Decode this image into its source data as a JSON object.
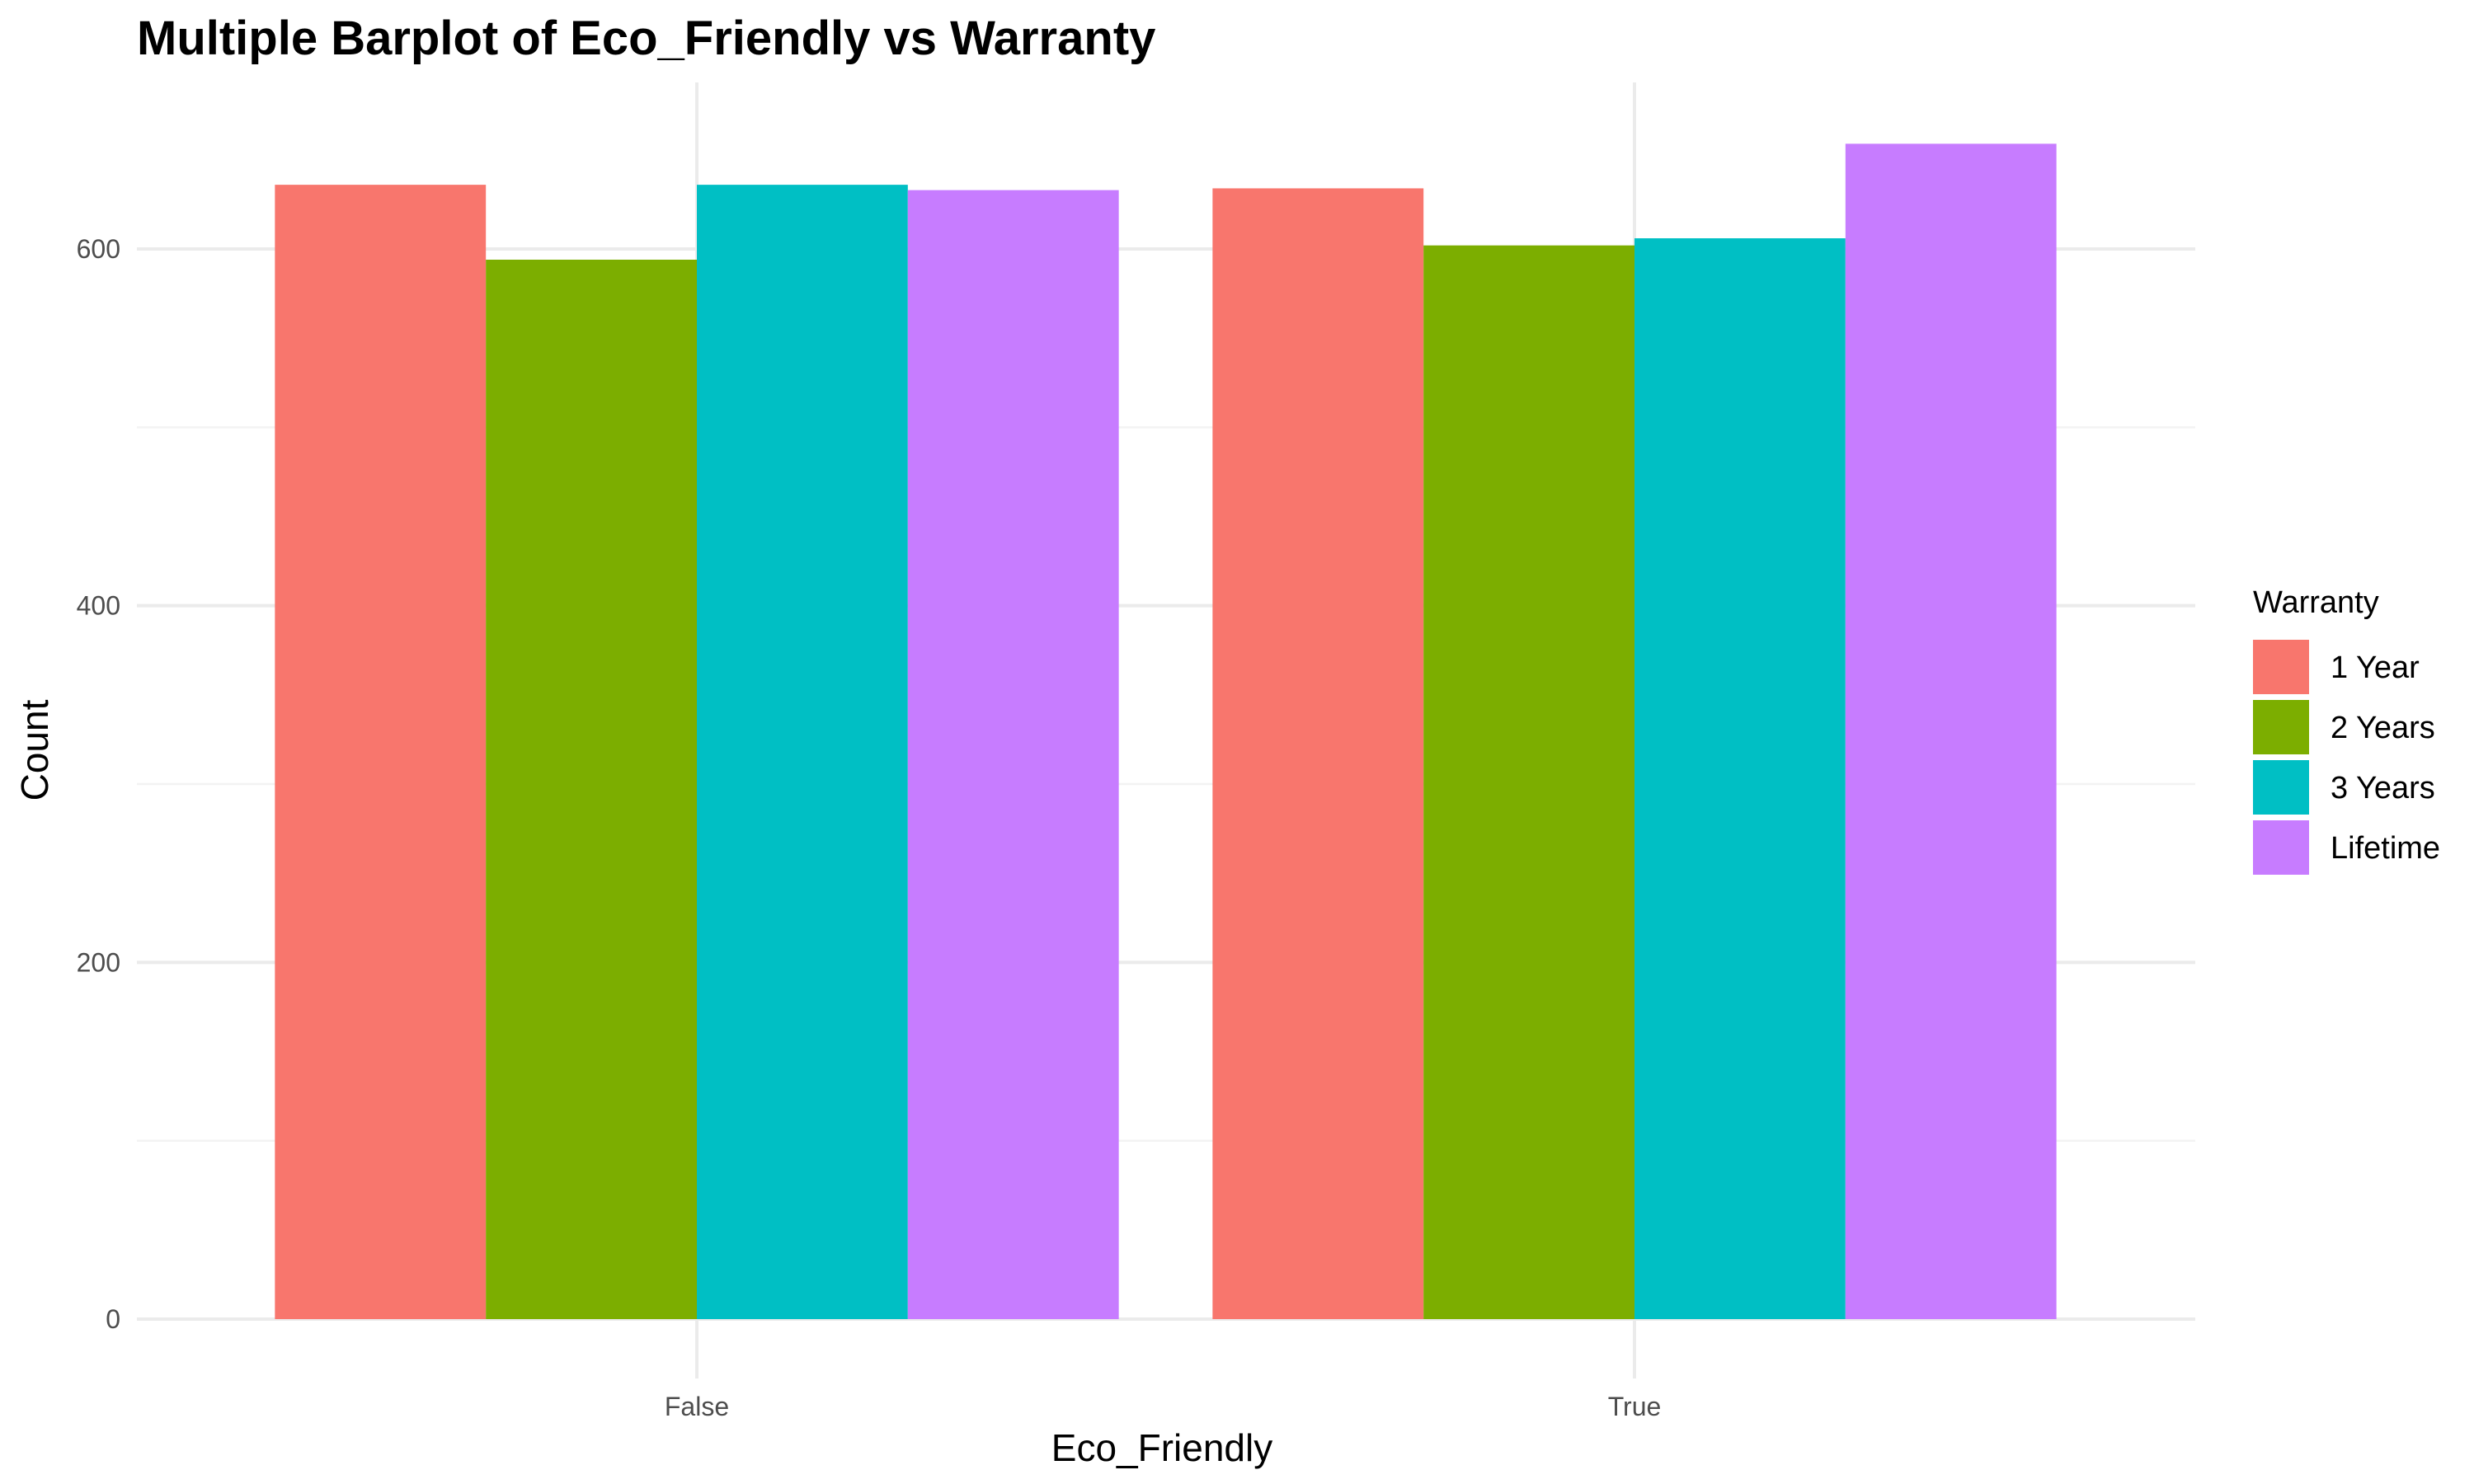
{
  "chart_data": {
    "type": "bar",
    "title": "Multiple Barplot of Eco_Friendly vs Warranty",
    "xlabel": "Eco_Friendly",
    "ylabel": "Count",
    "categories": [
      "False",
      "True"
    ],
    "series": [
      {
        "name": "1 Year",
        "color": "#F8766D",
        "values": [
          636,
          634
        ]
      },
      {
        "name": "2 Years",
        "color": "#7CAE00",
        "values": [
          594,
          602
        ]
      },
      {
        "name": "3 Years",
        "color": "#00BFC4",
        "values": [
          636,
          606
        ]
      },
      {
        "name": "Lifetime",
        "color": "#C77CFF",
        "values": [
          633,
          659
        ]
      }
    ],
    "ylim": [
      0,
      690
    ],
    "yticks": [
      0,
      200,
      400,
      600
    ],
    "grid": true,
    "legend": {
      "title": "Warranty",
      "position": "right"
    }
  }
}
